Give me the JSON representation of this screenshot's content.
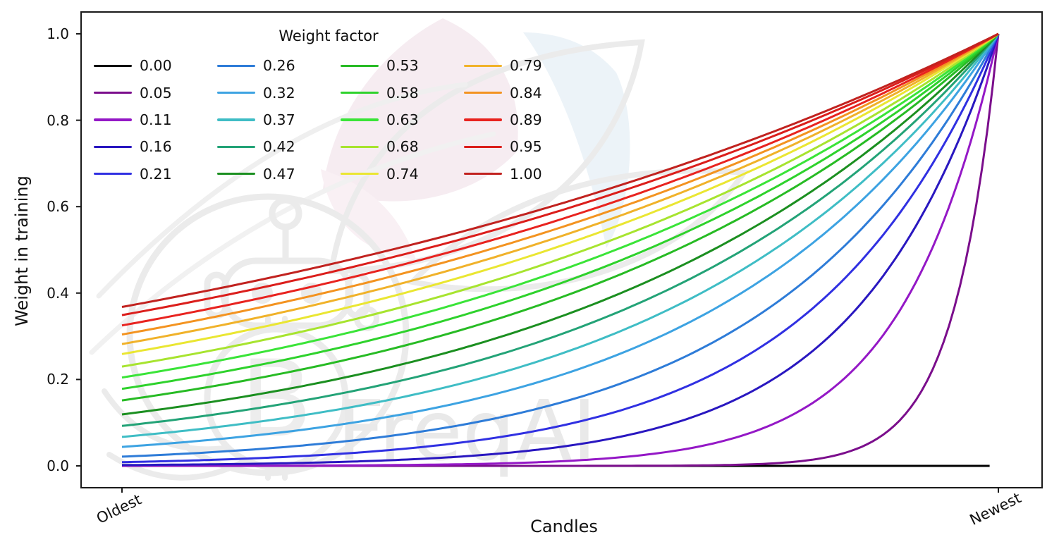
{
  "figure": {
    "watermark_text": "FreqAI",
    "watermark_symbol": "B",
    "background": "#ffffff"
  },
  "axes": {
    "x_label": "Candles",
    "y_label": "Weight in training",
    "x_tick_labels": [
      "Oldest",
      "Newest"
    ],
    "y_tick_labels": [
      "0.0",
      "0.2",
      "0.4",
      "0.6",
      "0.8",
      "1.0"
    ],
    "y_tick_values": [
      0.0,
      0.2,
      0.4,
      0.6,
      0.8,
      1.0
    ],
    "spine_color": "#1a1a1a"
  },
  "legend": {
    "title": "Weight factor",
    "columns": 4,
    "rows": 5
  },
  "chart_data": {
    "type": "line",
    "title": "",
    "xlabel": "Candles",
    "ylabel": "Weight in training",
    "x_range": [
      0,
      1
    ],
    "x_tick_labels": [
      "Oldest",
      "Newest"
    ],
    "ylim": [
      -0.05,
      1.05
    ],
    "grid": false,
    "legend_title": "Weight factor",
    "legend_position": "upper left, 4 columns, no frame",
    "formula": "weight(x) = exp(-(1 - x) / weight_factor) for x in [0,1] (x=0 oldest candle, x=1 newest); weight_factor = 0.00 gives weight 0 everywhere",
    "series": [
      {
        "label": "0.00",
        "weight_factor": 0.0,
        "color": "#000000",
        "weight_at_oldest": 0.0,
        "weight_at_newest": 0.0
      },
      {
        "label": "0.05",
        "weight_factor": 0.05,
        "color": "#7b0e8c",
        "weight_at_oldest": 0.0,
        "weight_at_newest": 1.0
      },
      {
        "label": "0.11",
        "weight_factor": 0.11,
        "color": "#9418c6",
        "weight_at_oldest": 0.0001,
        "weight_at_newest": 1.0
      },
      {
        "label": "0.16",
        "weight_factor": 0.16,
        "color": "#2917c0",
        "weight_at_oldest": 0.002,
        "weight_at_newest": 1.0
      },
      {
        "label": "0.21",
        "weight_factor": 0.21,
        "color": "#3030e2",
        "weight_at_oldest": 0.009,
        "weight_at_newest": 1.0
      },
      {
        "label": "0.26",
        "weight_factor": 0.26,
        "color": "#2e7cd8",
        "weight_at_oldest": 0.021,
        "weight_at_newest": 1.0
      },
      {
        "label": "0.32",
        "weight_factor": 0.32,
        "color": "#3da3e2",
        "weight_at_oldest": 0.044,
        "weight_at_newest": 1.0
      },
      {
        "label": "0.37",
        "weight_factor": 0.37,
        "color": "#3fbdc5",
        "weight_at_oldest": 0.067,
        "weight_at_newest": 1.0
      },
      {
        "label": "0.42",
        "weight_factor": 0.42,
        "color": "#23a377",
        "weight_at_oldest": 0.092,
        "weight_at_newest": 1.0
      },
      {
        "label": "0.47",
        "weight_factor": 0.47,
        "color": "#1b8f20",
        "weight_at_oldest": 0.119,
        "weight_at_newest": 1.0
      },
      {
        "label": "0.53",
        "weight_factor": 0.53,
        "color": "#27bb24",
        "weight_at_oldest": 0.152,
        "weight_at_newest": 1.0
      },
      {
        "label": "0.58",
        "weight_factor": 0.58,
        "color": "#2ed22c",
        "weight_at_oldest": 0.178,
        "weight_at_newest": 1.0
      },
      {
        "label": "0.63",
        "weight_factor": 0.63,
        "color": "#3ae438",
        "weight_at_oldest": 0.204,
        "weight_at_newest": 1.0
      },
      {
        "label": "0.68",
        "weight_factor": 0.68,
        "color": "#a7e42f",
        "weight_at_oldest": 0.23,
        "weight_at_newest": 1.0
      },
      {
        "label": "0.74",
        "weight_factor": 0.74,
        "color": "#eae632",
        "weight_at_oldest": 0.259,
        "weight_at_newest": 1.0
      },
      {
        "label": "0.79",
        "weight_factor": 0.79,
        "color": "#f0b22a",
        "weight_at_oldest": 0.282,
        "weight_at_newest": 1.0
      },
      {
        "label": "0.84",
        "weight_factor": 0.84,
        "color": "#f39320",
        "weight_at_oldest": 0.304,
        "weight_at_newest": 1.0
      },
      {
        "label": "0.89",
        "weight_factor": 0.89,
        "color": "#e8231f",
        "weight_at_oldest": 0.325,
        "weight_at_newest": 1.0
      },
      {
        "label": "0.95",
        "weight_factor": 0.95,
        "color": "#db1e1b",
        "weight_at_oldest": 0.349,
        "weight_at_newest": 1.0
      },
      {
        "label": "1.00",
        "weight_factor": 1.0,
        "color": "#c1221f",
        "weight_at_oldest": 0.368,
        "weight_at_newest": 1.0
      }
    ]
  }
}
